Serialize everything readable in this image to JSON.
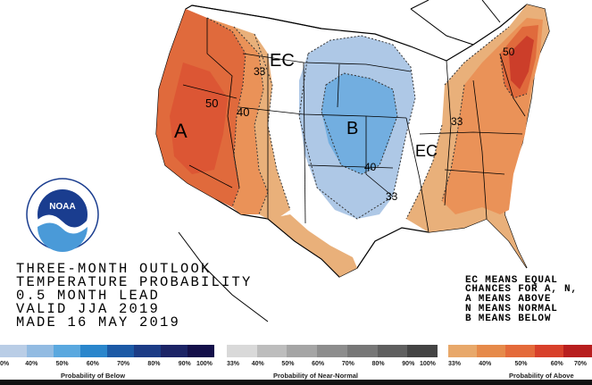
{
  "map_labels": {
    "ec_north": "EC",
    "ec_south": "EC",
    "a_west": "A",
    "b_center": "B",
    "contour_50_west": "50",
    "contour_40_west": "40",
    "contour_33_nw": "33",
    "contour_40_center": "40",
    "contour_33_south": "33",
    "contour_33_east": "33",
    "contour_50_ne": "50"
  },
  "info": {
    "line1": "THREE-MONTH OUTLOOK",
    "line2": "TEMPERATURE PROBABILITY",
    "line3": "0.5 MONTH LEAD",
    "line4": "VALID JJA 2019",
    "line5": "MADE 16 MAY 2019"
  },
  "legend_key": {
    "line1": "EC MEANS EQUAL",
    "line2": "CHANCES FOR A, N,",
    "line3": "A MEANS ABOVE",
    "line4": "N MEANS NORMAL",
    "line5": "B MEANS BELOW"
  },
  "logo": {
    "text": "NOAA"
  },
  "scales": {
    "below": {
      "title": "Probability of Below",
      "ticks": [
        "0%",
        "40%",
        "50%",
        "60%",
        "70%",
        "80%",
        "90%",
        "100%"
      ],
      "colors": [
        "#b9cde6",
        "#92bbe2",
        "#5aa8df",
        "#2a86cc",
        "#1c5aa6",
        "#1c3c86",
        "#1c2466",
        "#14104a"
      ]
    },
    "normal": {
      "title": "Probability of Near-Normal",
      "ticks": [
        "33%",
        "40%",
        "50%",
        "60%",
        "70%",
        "80%",
        "90%",
        "100%"
      ],
      "colors": [
        "#d9d9d9",
        "#bdbdbd",
        "#a5a5a5",
        "#8d8d8d",
        "#777777",
        "#5f5f5f",
        "#444444"
      ]
    },
    "above": {
      "title": "Probability of Above",
      "ticks": [
        "33%",
        "40%",
        "50%",
        "60%",
        "70%"
      ],
      "colors": [
        "#e8a86a",
        "#e68a4a",
        "#e46a3a",
        "#d8402a",
        "#b81e1e"
      ]
    }
  },
  "colors": {
    "above_33": "#e9b07a",
    "above_40": "#ea9258",
    "above_50": "#e06a3c",
    "above_60": "#cc3e2a",
    "below_33": "#aec8e6",
    "below_40": "#72aee0",
    "background": "#ffffff",
    "boundary": "#000000"
  }
}
